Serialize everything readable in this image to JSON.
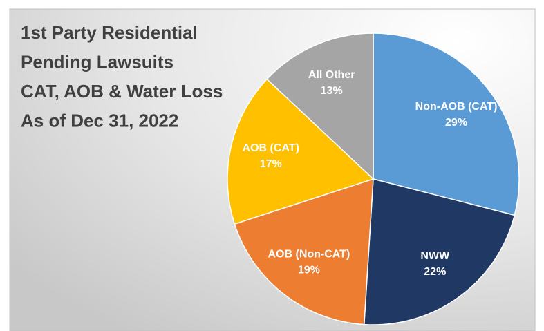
{
  "chart_data": {
    "type": "pie",
    "title": [
      "1st Party Residential",
      "Pending Lawsuits",
      "CAT, AOB & Water Loss",
      "As of Dec 31, 2022"
    ],
    "categories": [
      "Non-AOB (CAT)",
      "NWW",
      "AOB (Non-CAT)",
      "AOB (CAT)",
      "All Other"
    ],
    "values": [
      29,
      22,
      19,
      17,
      13
    ],
    "value_labels": [
      "29%",
      "22%",
      "19%",
      "17%",
      "13%"
    ],
    "colors": [
      "#5b9bd5",
      "#203864",
      "#ed7d31",
      "#ffc000",
      "#a5a5a5"
    ]
  }
}
